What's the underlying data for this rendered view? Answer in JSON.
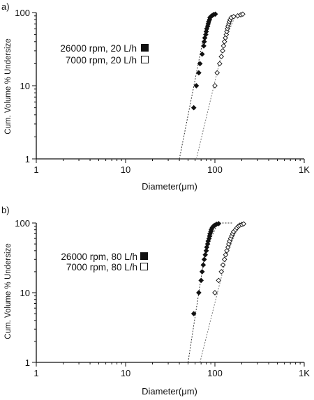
{
  "chart_data": [
    {
      "type": "scatter",
      "panel_label": "a)",
      "xlabel": "Diameter(μm)",
      "ylabel": "Cum. Volume % Undersize",
      "x_scale": "log",
      "y_scale": "log",
      "xlim": [
        1,
        1000
      ],
      "ylim": [
        1,
        100
      ],
      "x_ticks": [
        "1",
        "10",
        "100",
        "1K"
      ],
      "y_ticks": [
        "1",
        "10",
        "100"
      ],
      "grid": false,
      "legend_position": "left",
      "series": [
        {
          "name": "26000 rpm, 20 L/h",
          "marker": "filled-diamond",
          "color": "#111111",
          "fit_line": [
            [
              40,
              1
            ],
            [
              72,
              37
            ],
            [
              98,
              100
            ]
          ],
          "points": [
            [
              58,
              5
            ],
            [
              62,
              10
            ],
            [
              66,
              15
            ],
            [
              68,
              20
            ],
            [
              72,
              27
            ],
            [
              75,
              35
            ],
            [
              76,
              40
            ],
            [
              77,
              45
            ],
            [
              79,
              50
            ],
            [
              80,
              55
            ],
            [
              81,
              60
            ],
            [
              83,
              65
            ],
            [
              84,
              70
            ],
            [
              85,
              75
            ],
            [
              87,
              80
            ],
            [
              88,
              85
            ],
            [
              90,
              88
            ],
            [
              93,
              91
            ],
            [
              97,
              94
            ],
            [
              101,
              95
            ]
          ]
        },
        {
          "name": "7000 rpm, 20 L/h",
          "marker": "open-diamond",
          "color": "#111111",
          "fit_line": [
            [
              62,
              1
            ],
            [
              128,
              40
            ],
            [
              170,
              92
            ]
          ],
          "points": [
            [
              100,
              10
            ],
            [
              106,
              15
            ],
            [
              113,
              20
            ],
            [
              118,
              25
            ],
            [
              122,
              30
            ],
            [
              125,
              35
            ],
            [
              128,
              40
            ],
            [
              131,
              45
            ],
            [
              134,
              50
            ],
            [
              136,
              55
            ],
            [
              138,
              60
            ],
            [
              140,
              65
            ],
            [
              143,
              70
            ],
            [
              145,
              75
            ],
            [
              148,
              80
            ],
            [
              152,
              85
            ],
            [
              162,
              88
            ],
            [
              180,
              90
            ],
            [
              195,
              93
            ],
            [
              205,
              95
            ]
          ]
        }
      ]
    },
    {
      "type": "scatter",
      "panel_label": "b)",
      "xlabel": "Diameter(μm)",
      "ylabel": "Cum. Volume % Undersize",
      "x_scale": "log",
      "y_scale": "log",
      "xlim": [
        1,
        1000
      ],
      "ylim": [
        1,
        100
      ],
      "x_ticks": [
        "1",
        "10",
        "100",
        "1K"
      ],
      "y_ticks": [
        "1",
        "10",
        "100"
      ],
      "grid": false,
      "legend_position": "left",
      "series": [
        {
          "name": "26000 rpm, 80 L/h",
          "marker": "filled-diamond",
          "color": "#111111",
          "fit_line": [
            [
              50,
              1
            ],
            [
              78,
              40
            ],
            [
              108,
              100
            ],
            [
              160,
              100
            ]
          ],
          "points": [
            [
              58,
              5
            ],
            [
              66,
              10
            ],
            [
              70,
              15
            ],
            [
              72,
              20
            ],
            [
              74,
              25
            ],
            [
              76,
              30
            ],
            [
              78,
              35
            ],
            [
              80,
              40
            ],
            [
              81,
              45
            ],
            [
              83,
              50
            ],
            [
              84,
              55
            ],
            [
              86,
              60
            ],
            [
              87,
              65
            ],
            [
              88,
              70
            ],
            [
              90,
              75
            ],
            [
              91,
              80
            ],
            [
              93,
              85
            ],
            [
              95,
              88
            ],
            [
              97,
              91
            ],
            [
              100,
              93
            ],
            [
              104,
              96
            ],
            [
              110,
              98
            ]
          ]
        },
        {
          "name": "7000 rpm, 80 L/h",
          "marker": "open-diamond",
          "color": "#111111",
          "fit_line": [
            [
              68,
              1
            ],
            [
              140,
              40
            ],
            [
              185,
              90
            ]
          ],
          "points": [
            [
              100,
              10
            ],
            [
              110,
              15
            ],
            [
              118,
              20
            ],
            [
              123,
              25
            ],
            [
              128,
              30
            ],
            [
              132,
              35
            ],
            [
              136,
              40
            ],
            [
              140,
              45
            ],
            [
              143,
              50
            ],
            [
              146,
              55
            ],
            [
              150,
              60
            ],
            [
              154,
              65
            ],
            [
              158,
              70
            ],
            [
              162,
              75
            ],
            [
              170,
              80
            ],
            [
              176,
              85
            ],
            [
              183,
              90
            ],
            [
              190,
              93
            ],
            [
              200,
              95
            ],
            [
              210,
              97
            ]
          ]
        }
      ]
    }
  ]
}
